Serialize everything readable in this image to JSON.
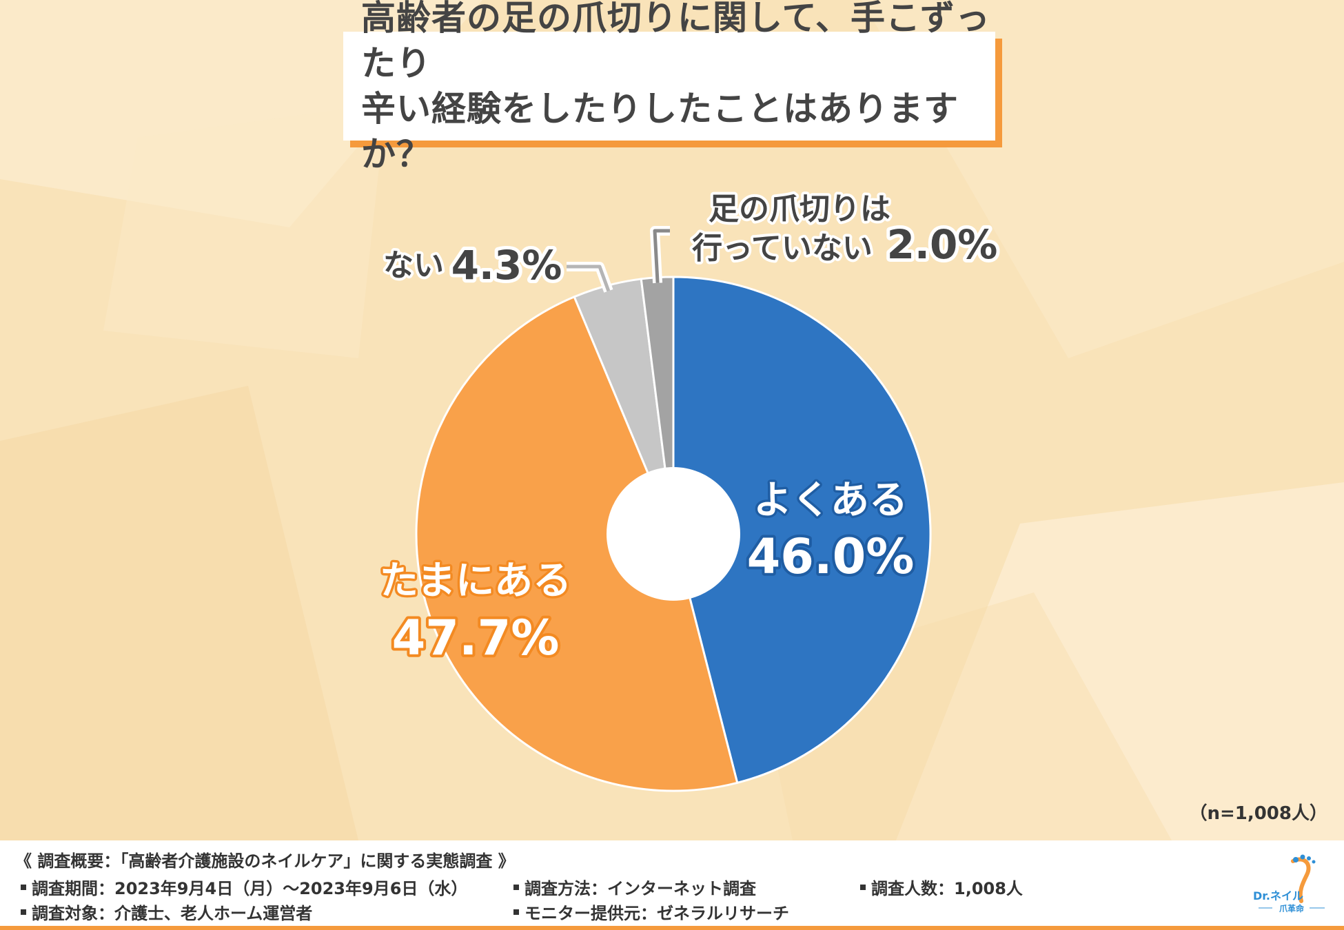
{
  "title": {
    "line1": "高齢者の足の爪切りに関して、手こずったり",
    "line2": "辛い経験をしたりしたことはありますか？"
  },
  "chart_data": {
    "type": "pie",
    "donut": true,
    "slices": [
      {
        "label": "よくある",
        "value": 46.0,
        "value_text": "46.0%",
        "color": "#2e75c2"
      },
      {
        "label": "たまにある",
        "value": 47.7,
        "value_text": "47.7%",
        "color": "#f9a14a"
      },
      {
        "label": "ない",
        "value": 4.3,
        "value_text": "4.3%",
        "color": "#c6c6c6"
      },
      {
        "label_lines": [
          "足の爪切りは",
          "行っていない"
        ],
        "value": 2.0,
        "value_text": "2.0%",
        "color": "#a3a3a3"
      }
    ]
  },
  "sample_note": "（n=1,008人）",
  "footer": {
    "heading": "《 調査概要：「高齢者介護施設のネイルケア」に関する実態調査 》",
    "period": "調査期間：2023年9月4日（月）～2023年9月6日（水）",
    "method": "調査方法：インターネット調査",
    "count": "調査人数：1,008人",
    "target": "調査対象：介護士、老人ホーム運営者",
    "provider": "モニター提供元：ゼネラルリサーチ"
  },
  "logo": {
    "main": "Dr.ネイル",
    "sub": "爪革命"
  },
  "colors": {
    "accent": "#f59a3c",
    "blue": "#2e75c2",
    "orange": "#f9a14a"
  }
}
